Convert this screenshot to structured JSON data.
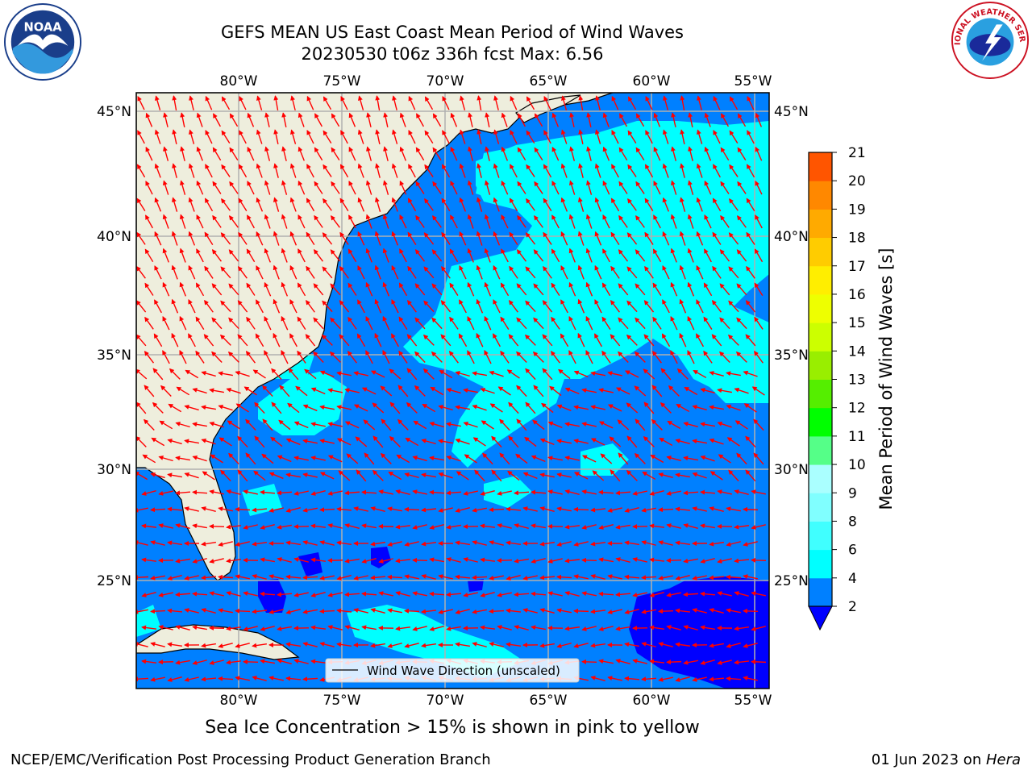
{
  "title": {
    "line1": "GEFS MEAN US East Coast Mean Period of Wind Waves",
    "line2": "20230530 t06z 336h fcst   Max: 6.56"
  },
  "logos": {
    "left": "NOAA",
    "right": "NATIONAL WEATHER SERVICE"
  },
  "map": {
    "lon_ticks": [
      "80°W",
      "75°W",
      "70°W",
      "65°W",
      "60°W",
      "55°W"
    ],
    "lat_ticks": [
      "45°N",
      "40°N",
      "35°N",
      "30°N",
      "25°N"
    ],
    "lon_range": [
      -85,
      -54.3
    ],
    "lat_range": [
      20.1,
      46
    ],
    "colors": {
      "land": "#eeeedd",
      "ocean_2_4": "#0080ff",
      "ocean_4_6": "#00ffff",
      "ocean_lt_2": "#0000ff",
      "arrows": "#ff0000",
      "grid": "#b0b0b0"
    },
    "legend_label": "Wind Wave Direction (unscaled)"
  },
  "colorbar": {
    "label": "Mean Period of Wind Waves [s]",
    "ticks": [
      "2",
      "4",
      "6",
      "8",
      "9",
      "10",
      "11",
      "12",
      "13",
      "14",
      "15",
      "16",
      "17",
      "18",
      "19",
      "20",
      "21"
    ],
    "colors": [
      "#0080ff",
      "#00ffff",
      "#40ffff",
      "#80ffff",
      "#aaffff",
      "#55ff88",
      "#00ff00",
      "#55ee00",
      "#99ee00",
      "#ccff00",
      "#eeff00",
      "#ffee00",
      "#ffcc00",
      "#ffaa00",
      "#ff8800",
      "#ff5500",
      "#ff2200",
      "#ff0000"
    ],
    "extend_min_color": "#0000ff"
  },
  "subtitle": "Sea Ice Concentration > 15% is shown in pink to yellow",
  "footer": {
    "left": "NCEP/EMC/Verification Post Processing Product Generation Branch",
    "right_date": "01 Jun 2023 on ",
    "right_machine": "Hera"
  }
}
